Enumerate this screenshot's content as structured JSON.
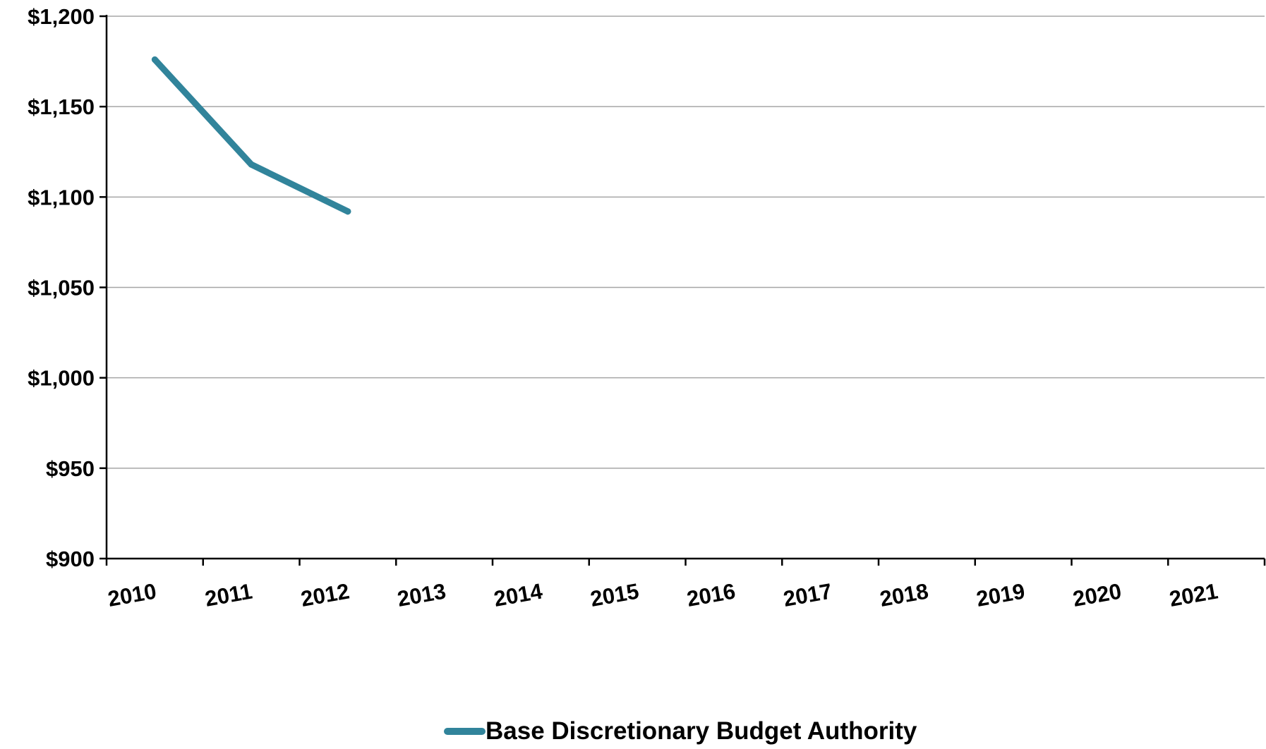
{
  "chart_data": {
    "type": "line",
    "categories": [
      "2010",
      "2011",
      "2012",
      "2013",
      "2014",
      "2015",
      "2016",
      "2017",
      "2018",
      "2019",
      "2020",
      "2021"
    ],
    "series": [
      {
        "name": "Base Discretionary Budget Authority",
        "values": [
          1176,
          1118,
          1092,
          null,
          null,
          null,
          null,
          null,
          null,
          null,
          null,
          null
        ]
      }
    ],
    "ylim": [
      900,
      1200
    ],
    "yticks": [
      900,
      950,
      1000,
      1050,
      1100,
      1150,
      1200
    ],
    "ytick_labels": [
      "$900",
      "$950",
      "$1,000",
      "$1,050",
      "$1,100",
      "$1,150",
      "$1,200"
    ],
    "grid": true,
    "legend_position": "bottom-center",
    "title": "",
    "xlabel": "",
    "ylabel": ""
  },
  "colors": {
    "series": "#31849b",
    "grid": "#a6a6a6",
    "axis": "#000000"
  }
}
